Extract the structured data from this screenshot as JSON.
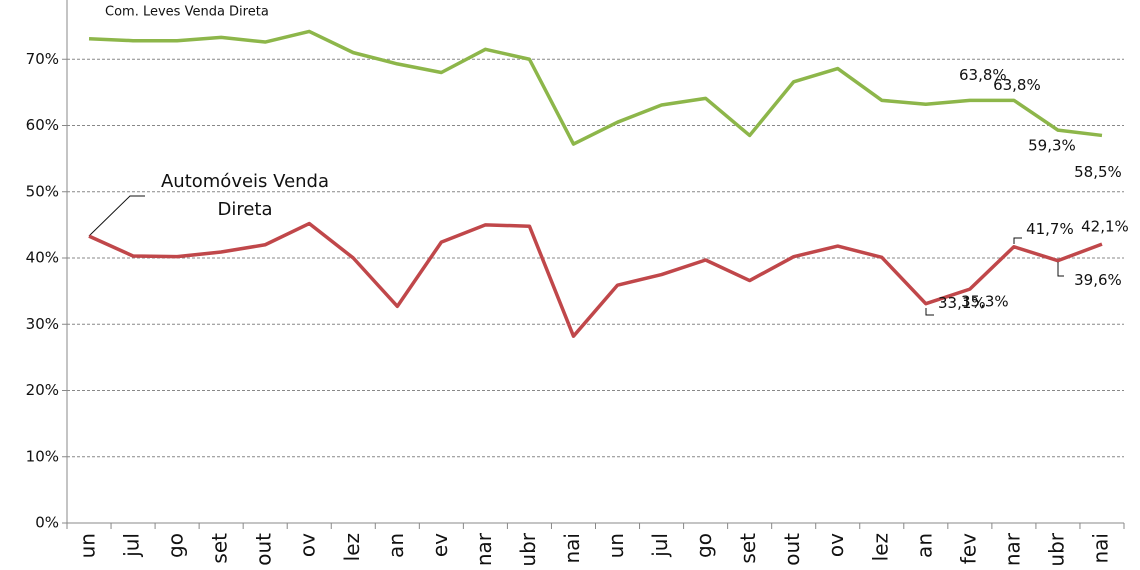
{
  "chart_data": {
    "type": "line",
    "categories": [
      "un",
      "jul",
      "go",
      "set",
      "out",
      "ov",
      "lez",
      "an",
      "ev",
      "nar",
      "ubr",
      "nai",
      "un",
      "jul",
      "go",
      "set",
      "out",
      "ov",
      "lez",
      "an",
      "fev",
      "nar",
      "ubr",
      "nai"
    ],
    "series": [
      {
        "name": "Com. Leves Venda Direta",
        "color": "#8db64a",
        "values": [
          73.1,
          72.8,
          72.8,
          73.3,
          72.6,
          74.2,
          71.0,
          69.3,
          68.0,
          71.5,
          70.0,
          57.2,
          60.5,
          63.1,
          64.1,
          58.5,
          66.6,
          68.6,
          63.8,
          63.2,
          63.8,
          63.8,
          59.3,
          58.5
        ],
        "value_labels": [
          null,
          null,
          null,
          null,
          null,
          null,
          null,
          null,
          null,
          null,
          null,
          null,
          null,
          null,
          null,
          null,
          null,
          null,
          null,
          null,
          "63,8%",
          "63,8%",
          "59,3%",
          "58,5%"
        ]
      },
      {
        "name": "Automóveis Venda Direta",
        "color": "#c0474a",
        "values": [
          43.3,
          40.3,
          40.2,
          40.9,
          42.0,
          45.2,
          40.0,
          32.7,
          42.4,
          45.0,
          44.8,
          28.2,
          35.9,
          37.5,
          39.7,
          36.6,
          40.2,
          41.8,
          40.1,
          33.1,
          35.3,
          41.7,
          39.6,
          42.1
        ],
        "value_labels": [
          null,
          null,
          null,
          null,
          null,
          null,
          null,
          null,
          null,
          null,
          null,
          null,
          null,
          null,
          null,
          null,
          null,
          null,
          null,
          "33,1%",
          "35,3%",
          "41,7%",
          "39,6%",
          "42,1%"
        ]
      }
    ],
    "ylim": [
      0,
      80
    ],
    "yticks": [
      {
        "value": 0,
        "label": "0%"
      },
      {
        "value": 10,
        "label": "10%"
      },
      {
        "value": 20,
        "label": "20%"
      },
      {
        "value": 30,
        "label": "30%"
      },
      {
        "value": 40,
        "label": "40%"
      },
      {
        "value": 50,
        "label": "50%"
      },
      {
        "value": 60,
        "label": "60%"
      },
      {
        "value": 70,
        "label": "70%"
      }
    ],
    "grid": true
  }
}
